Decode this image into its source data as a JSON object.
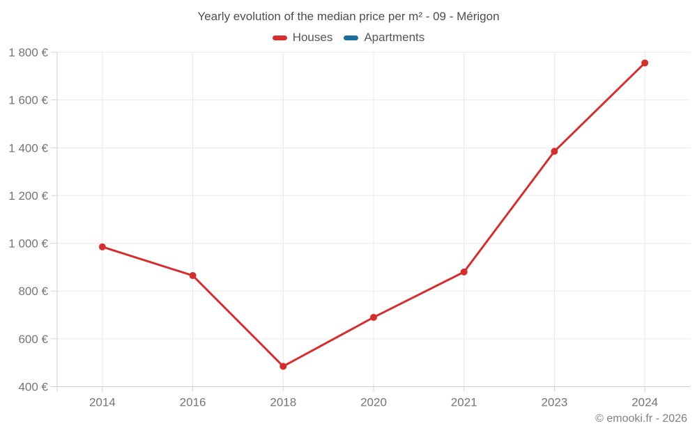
{
  "header": {
    "title": "Yearly evolution of the median price per m² - 09 - Mérigon"
  },
  "legend": {
    "items": [
      {
        "label": "Houses",
        "color": "#d32f2f"
      },
      {
        "label": "Apartments",
        "color": "#1c6d9a"
      }
    ]
  },
  "footer": {
    "attribution": "© emooki.fr - 2026"
  },
  "theme": {
    "background": "#ffffff",
    "title_color": "#4d4d4d",
    "legend_text_color": "#555555",
    "tick_label_color": "#757575",
    "grid_color": "#e9e9e9",
    "axis_color": "#d2d2d2",
    "attribution_color": "#808080"
  },
  "chart_data": {
    "type": "line",
    "title": "Yearly evolution of the median price per m² - 09 - Mérigon",
    "categories": [
      "2014",
      "2016",
      "2018",
      "2020",
      "2021",
      "2023",
      "2024"
    ],
    "series": [
      {
        "name": "Houses",
        "color": "#d32f2f",
        "values": [
          985,
          865,
          485,
          690,
          880,
          1385,
          1755
        ]
      },
      {
        "name": "Apartments",
        "color": "#1c6d9a",
        "values": []
      }
    ],
    "xlabel": "",
    "ylabel": "",
    "ylim": [
      400,
      1800
    ],
    "yticks": [
      {
        "value": 400,
        "label": "400 €"
      },
      {
        "value": 600,
        "label": "600 €"
      },
      {
        "value": 800,
        "label": "800 €"
      },
      {
        "value": 1000,
        "label": "1 000 €"
      },
      {
        "value": 1200,
        "label": "1 200 €"
      },
      {
        "value": 1400,
        "label": "1 400 €"
      },
      {
        "value": 1600,
        "label": "1 600 €"
      },
      {
        "value": 1800,
        "label": "1 800 €"
      }
    ],
    "grid": true,
    "legend_position": "top",
    "marker": "circle"
  }
}
